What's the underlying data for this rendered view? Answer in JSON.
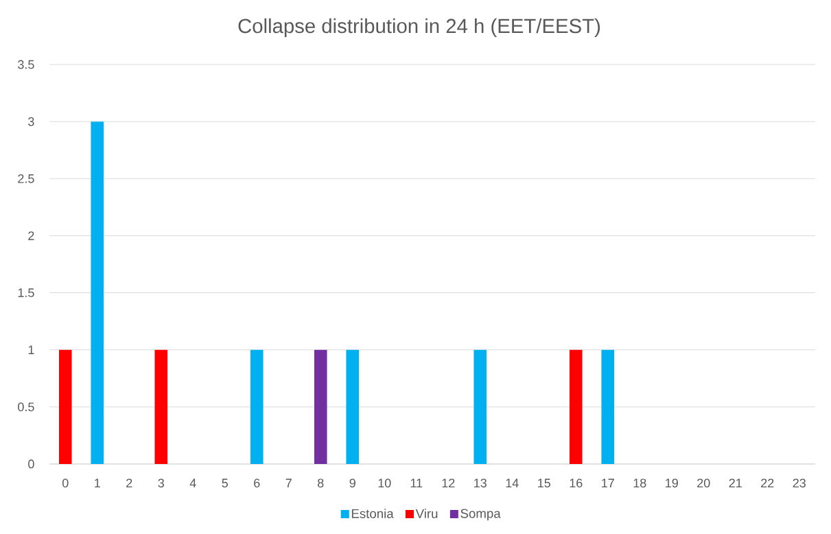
{
  "chart_data": {
    "type": "bar",
    "title": "Collapse distribution in 24 h (EET/EEST)",
    "categories": [
      "0",
      "1",
      "2",
      "3",
      "4",
      "5",
      "6",
      "7",
      "8",
      "9",
      "10",
      "11",
      "12",
      "13",
      "14",
      "15",
      "16",
      "17",
      "18",
      "19",
      "20",
      "21",
      "22",
      "23"
    ],
    "series": [
      {
        "name": "Estonia",
        "color": "#00b0f0",
        "values": [
          null,
          3,
          null,
          null,
          null,
          null,
          1,
          null,
          null,
          1,
          null,
          null,
          null,
          1,
          null,
          null,
          null,
          1,
          null,
          null,
          null,
          null,
          null,
          null
        ]
      },
      {
        "name": "Viru",
        "color": "#ff0000",
        "values": [
          1,
          null,
          null,
          1,
          null,
          null,
          null,
          null,
          null,
          null,
          null,
          null,
          null,
          null,
          null,
          null,
          1,
          null,
          null,
          null,
          null,
          null,
          null,
          null
        ]
      },
      {
        "name": "Sompa",
        "color": "#7030a0",
        "values": [
          null,
          null,
          null,
          null,
          null,
          null,
          null,
          null,
          1,
          null,
          null,
          null,
          null,
          null,
          null,
          null,
          null,
          null,
          null,
          null,
          null,
          null,
          null,
          null
        ]
      }
    ],
    "ylim": [
      0,
      3.5
    ],
    "yticks": [
      0,
      0.5,
      1,
      1.5,
      2,
      2.5,
      3,
      3.5
    ],
    "grid": "y",
    "legend": "bottom"
  }
}
